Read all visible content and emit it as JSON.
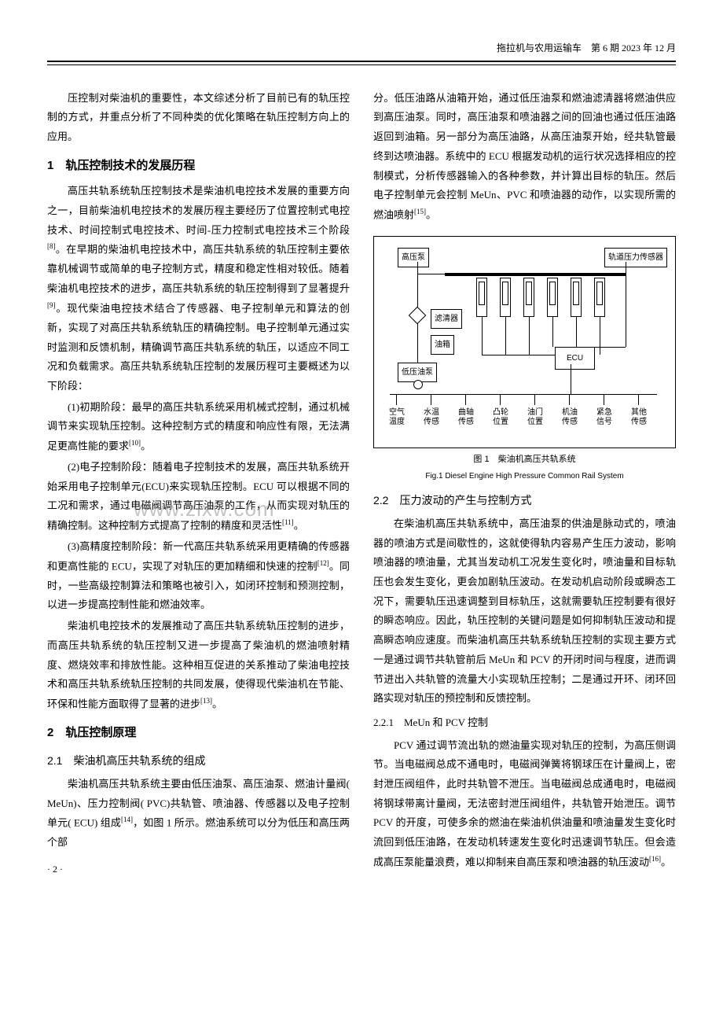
{
  "header": "拖拉机与农用运输车　第 6 期 2023 年 12 月",
  "left": {
    "p1": "压控制对柴油机的重要性，本文综述分析了目前已有的轨压控制的方式，并重点分析了不同种类的优化策略在轨压控制方向上的应用。",
    "h1": "1　轨压控制技术的发展历程",
    "p2a": "高压共轨系统轨压控制技术是柴油机电控技术发展的重要方向之一，目前柴油机电控技术的发展历程主要经历了位置控制式电控技术、时间控制式电控技术、时间-压力控制式电控技术三个阶段",
    "p2b": "。在早期的柴油机电控技术中，高压共轨系统的轨压控制主要依靠机械调节或简单的电子控制方式，精度和稳定性相对较低。随着柴油机电控技术的进步，高压共轨系统的轨压控制得到了显著提升",
    "p2c": "。现代柴油电控技术结合了传感器、电子控制单元和算法的创新，实现了对高压共轨系统轨压的精确控制。电子控制单元通过实时监测和反馈机制，精确调节高压共轨系统的轨压，以适应不同工况和负载需求。高压共轨系统轨压控制的发展历程可主要概述为以下阶段：",
    "p3a": "(1)初期阶段：最早的高压共轨系统采用机械式控制，通过机械调节来实现轨压控制。这种控制方式的精度和响应性有限，无法满足更高性能的要求",
    "p3b": "。",
    "p4a": "(2)电子控制阶段：随着电子控制技术的发展，高压共轨系统开始采用电子控制单元(ECU)来实现轨压控制。ECU 可以根据不同的工况和需求，通过电磁阀调节高压油泵的工作，从而实现对轨压的精确控制。这种控制方式提高了控制的精度和灵活性",
    "p4b": "。",
    "p5a": "(3)高精度控制阶段：新一代高压共轨系统采用更精确的传感器和更高性能的 ECU，实现了对轨压的更加精细和快速的控制",
    "p5b": "。同时，一些高级控制算法和策略也被引入，如闭环控制和预测控制，以进一步提高控制性能和燃油效率。",
    "p6a": "柴油机电控技术的发展推动了高压共轨系统轨压控制的进步，而高压共轨系统的轨压控制又进一步提高了柴油机的燃油喷射精度、燃烧效率和排放性能。这种相互促进的关系推动了柴油电控技术和高压共轨系统轨压控制的共同发展，使得现代柴油机在节能、环保和性能方面取得了显著的进步",
    "p6b": "。",
    "h2": "2　轨压控制原理",
    "h2_1": "2.1　柴油机高压共轨系统的组成",
    "p7a": "柴油机高压共轨系统主要由低压油泵、高压油泵、燃油计量阀( MeUn)、压力控制阀( PVC)共轨管、喷油器、传感器以及电子控制单元( ECU) 组成",
    "p7b": "，如图 1 所示。燃油系统可以分为低压和高压两个部",
    "refs": {
      "r8": "[8]",
      "r9": "[9]",
      "r10": "[10]",
      "r11": "[11]",
      "r12": "[12]",
      "r13": "[13]",
      "r14": "[14]"
    }
  },
  "right": {
    "p1a": "分。低压油路从油箱开始，通过低压油泵和燃油滤清器将燃油供应到高压油泵。同时，高压油泵和喷油器之间的回油也通过低压油路返回到油箱。另一部分为高压油路，从高压油泵开始，经共轨管最终到达喷油器。系统中的 ECU 根据发动机的运行状况选择相应的控制模式，分析传感器输入的各种参数，并计算出目标的轨压。然后电子控制单元会控制 MeUn、PVC 和喷油器的动作，以实现所需的燃油喷射",
    "p1b": "。",
    "fig": {
      "labels": {
        "pump": "高压泵",
        "sensor": "轨道压力传感器",
        "filter": "滤清器",
        "tank": "油箱",
        "lowpump": "低压油泵",
        "ecu": "ECU"
      },
      "bottom": [
        "空气\n温度",
        "水温\n传感",
        "曲轴\n传感",
        "凸轮\n位置",
        "油门\n位置",
        "机油\n传感",
        "紧急\n信号",
        "其他\n传感"
      ],
      "caption_cn": "图 1　柴油机高压共轨系统",
      "caption_en": "Fig.1 Diesel Engine High Pressure Common Rail System"
    },
    "h2_2": "2.2　压力波动的产生与控制方式",
    "p2": "在柴油机高压共轨系统中，高压油泵的供油是脉动式的，喷油器的喷油方式是间歇性的，这就使得轨内容易产生压力波动，影响喷油器的喷油量，尤其当发动机工况发生变化时，喷油量和目标轨压也会发生变化，更会加剧轨压波动。在发动机启动阶段或瞬态工况下，需要轨压迅速调整到目标轨压，这就需要轨压控制要有很好的瞬态响应。因此，轨压控制的关键问题是如何抑制轨压波动和提高瞬态响应速度。而柴油机高压共轨系统轨压控制的实现主要方式一是通过调节共轨管前后 MeUn 和 PCV 的开闭时间与程度，进而调节进出入共轨管的流量大小实现轨压控制；二是通过开环、闭环回路实现对轨压的预控制和反馈控制。",
    "h3": "2.2.1　MeUn 和 PCV 控制",
    "p3a": "PCV 通过调节流出轨的燃油量实现对轨压的控制，为高压侧调节。当电磁阀总成不通电时，电磁阀弹簧将钢球压在计量阀上，密封泄压阀组件，此时共轨管不泄压。当电磁阀总成通电时，电磁阀将钢球带离计量阀，无法密封泄压阀组件，共轨管开始泄压。调节 PCV 的开度，可使多余的燃油在柴油机供油量和喷油量发生变化时流回到低压油路，在发动机转速发生变化时迅速调节轨压。但会造成高压泵能量浪费，难以抑制来自高压泵和喷油器的轨压波动",
    "p3b": "。",
    "refs": {
      "r15": "[15]",
      "r16": "[16]"
    }
  },
  "watermark": "www.zixw.com",
  "page": "· 2 ·"
}
